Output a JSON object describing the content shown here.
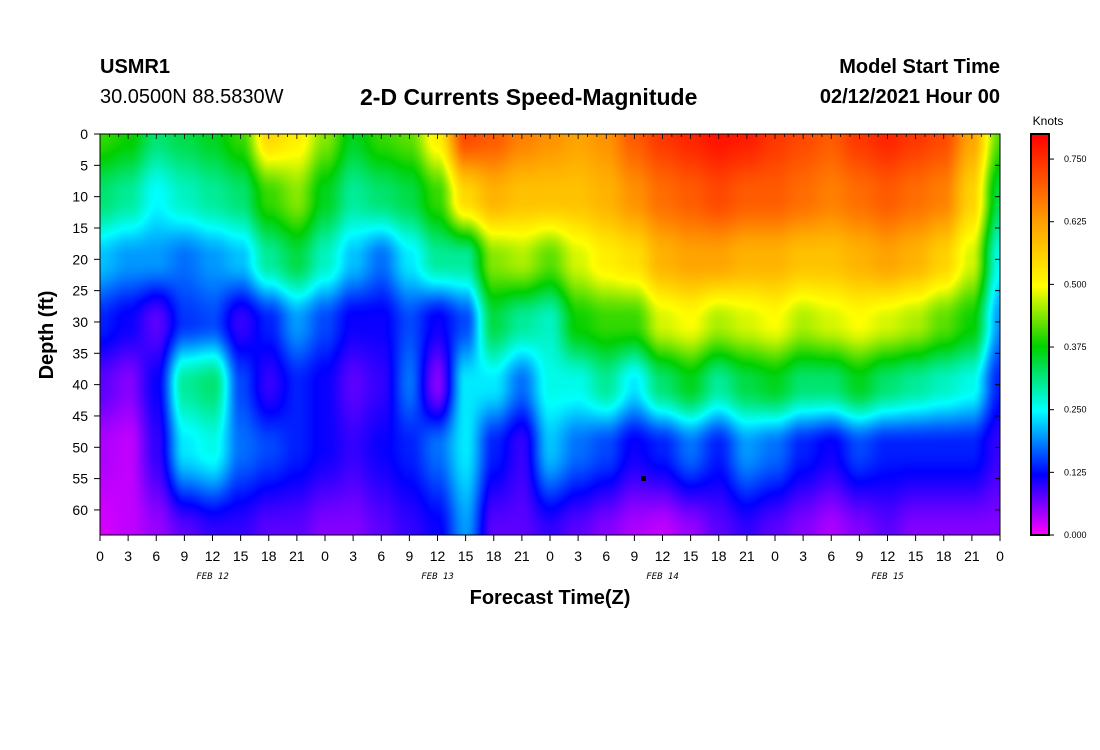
{
  "header": {
    "station_id": "USMR1",
    "coords": "30.0500N 88.5830W",
    "title": "2-D Currents Speed-Magnitude",
    "start_label": "Model Start Time",
    "start_value": "02/12/2021 Hour 00"
  },
  "chart_data": {
    "type": "heatmap",
    "title": "2-D Currents Speed-Magnitude",
    "xlabel": "Forecast Time(Z)",
    "ylabel": "Depth (ft)",
    "x_tick_labels": [
      "0",
      "3",
      "6",
      "9",
      "12",
      "15",
      "18",
      "21",
      "0",
      "3",
      "6",
      "9",
      "12",
      "15",
      "18",
      "21",
      "0",
      "3",
      "6",
      "9",
      "12",
      "15",
      "18",
      "21",
      "0",
      "3",
      "6",
      "9",
      "12",
      "15",
      "18",
      "21",
      "0"
    ],
    "x_hours_range": [
      0,
      96
    ],
    "date_labels": [
      {
        "label": "FEB 12",
        "hour": 12
      },
      {
        "label": "FEB 13",
        "hour": 36
      },
      {
        "label": "FEB 14",
        "hour": 60
      },
      {
        "label": "FEB 15",
        "hour": 84
      }
    ],
    "y_tick_labels": [
      "0",
      "5",
      "10",
      "15",
      "20",
      "25",
      "30",
      "35",
      "40",
      "45",
      "50",
      "55",
      "60"
    ],
    "ylim": [
      64,
      0
    ],
    "colorbar": {
      "unit": "Knots",
      "range": [
        0,
        0.8
      ],
      "tick_labels": [
        "0.000",
        "0.125",
        "0.250",
        "0.375",
        "0.500",
        "0.625",
        "0.750"
      ],
      "tick_values": [
        0,
        0.125,
        0.25,
        0.375,
        0.5,
        0.625,
        0.75
      ]
    },
    "speed_grid": {
      "hours": [
        0,
        3,
        6,
        9,
        12,
        15,
        18,
        21,
        24,
        27,
        30,
        33,
        36,
        39,
        42,
        45,
        48,
        51,
        54,
        57,
        60,
        63,
        66,
        69,
        72,
        75,
        78,
        81,
        84,
        87,
        90,
        93,
        96
      ],
      "depths": [
        0,
        10,
        20,
        30,
        40,
        50,
        64
      ],
      "values": [
        [
          0.4,
          0.32,
          0.22,
          0.14,
          0.08,
          0.04,
          0.02
        ],
        [
          0.38,
          0.3,
          0.2,
          0.12,
          0.06,
          0.03,
          0.03
        ],
        [
          0.32,
          0.25,
          0.2,
          0.08,
          0.12,
          0.1,
          0.05
        ],
        [
          0.34,
          0.28,
          0.18,
          0.15,
          0.3,
          0.24,
          0.08
        ],
        [
          0.36,
          0.3,
          0.2,
          0.16,
          0.32,
          0.26,
          0.1
        ],
        [
          0.4,
          0.32,
          0.22,
          0.1,
          0.16,
          0.18,
          0.1
        ],
        [
          0.55,
          0.4,
          0.3,
          0.14,
          0.1,
          0.16,
          0.08
        ],
        [
          0.52,
          0.44,
          0.34,
          0.2,
          0.14,
          0.14,
          0.08
        ],
        [
          0.44,
          0.36,
          0.28,
          0.16,
          0.12,
          0.12,
          0.06
        ],
        [
          0.36,
          0.3,
          0.22,
          0.12,
          0.08,
          0.1,
          0.06
        ],
        [
          0.4,
          0.32,
          0.18,
          0.12,
          0.1,
          0.12,
          0.08
        ],
        [
          0.42,
          0.34,
          0.24,
          0.16,
          0.18,
          0.14,
          0.1
        ],
        [
          0.52,
          0.4,
          0.3,
          0.12,
          0.06,
          0.18,
          0.12
        ],
        [
          0.72,
          0.55,
          0.3,
          0.16,
          0.24,
          0.24,
          0.2
        ],
        [
          0.7,
          0.6,
          0.44,
          0.34,
          0.24,
          0.14,
          0.08
        ],
        [
          0.66,
          0.58,
          0.46,
          0.3,
          0.18,
          0.1,
          0.08
        ],
        [
          0.64,
          0.58,
          0.42,
          0.28,
          0.26,
          0.22,
          0.1
        ],
        [
          0.62,
          0.58,
          0.48,
          0.38,
          0.26,
          0.18,
          0.08
        ],
        [
          0.64,
          0.6,
          0.52,
          0.4,
          0.3,
          0.16,
          0.06
        ],
        [
          0.7,
          0.64,
          0.54,
          0.4,
          0.24,
          0.12,
          0.04
        ],
        [
          0.74,
          0.68,
          0.6,
          0.48,
          0.32,
          0.14,
          0.03
        ],
        [
          0.76,
          0.7,
          0.62,
          0.5,
          0.36,
          0.18,
          0.05
        ],
        [
          0.78,
          0.72,
          0.62,
          0.46,
          0.3,
          0.14,
          0.08
        ],
        [
          0.77,
          0.7,
          0.6,
          0.48,
          0.34,
          0.2,
          0.1
        ],
        [
          0.74,
          0.7,
          0.6,
          0.5,
          0.36,
          0.18,
          0.08
        ],
        [
          0.72,
          0.68,
          0.58,
          0.46,
          0.32,
          0.14,
          0.06
        ],
        [
          0.7,
          0.66,
          0.58,
          0.48,
          0.32,
          0.12,
          0.04
        ],
        [
          0.74,
          0.68,
          0.6,
          0.5,
          0.36,
          0.16,
          0.06
        ],
        [
          0.76,
          0.7,
          0.62,
          0.48,
          0.32,
          0.14,
          0.08
        ],
        [
          0.74,
          0.68,
          0.6,
          0.46,
          0.3,
          0.14,
          0.06
        ],
        [
          0.72,
          0.66,
          0.56,
          0.42,
          0.28,
          0.14,
          0.06
        ],
        [
          0.62,
          0.56,
          0.48,
          0.38,
          0.26,
          0.14,
          0.06
        ],
        [
          0.42,
          0.34,
          0.26,
          0.2,
          0.14,
          0.1,
          0.06
        ]
      ]
    },
    "grid": false
  }
}
